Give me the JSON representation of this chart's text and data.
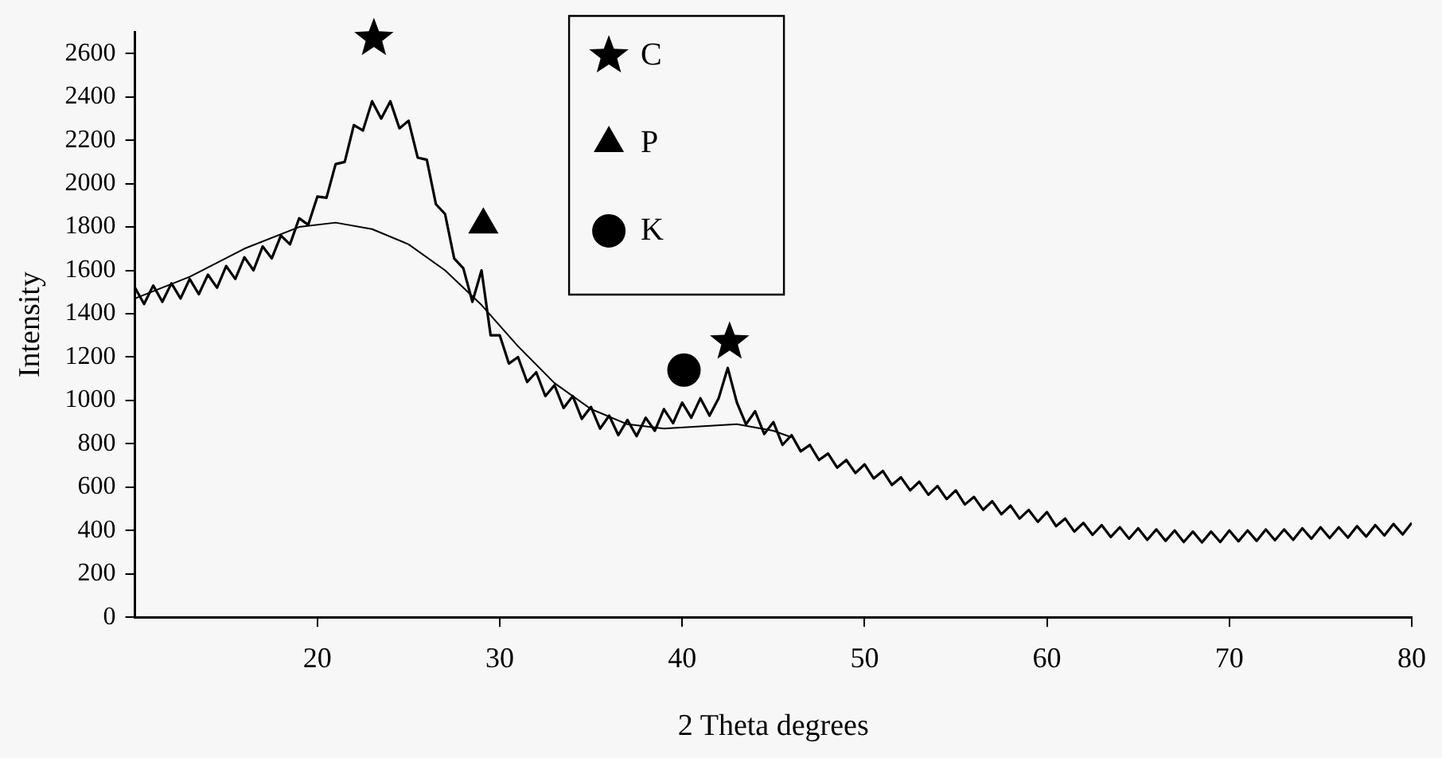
{
  "chart_data": {
    "type": "line",
    "xlabel": "2 Theta degrees",
    "ylabel": "Intensity",
    "xlim": [
      10,
      80
    ],
    "xticks": [
      20,
      30,
      40,
      50,
      60,
      70,
      80
    ],
    "ylim": [
      0,
      2700
    ],
    "yticks": [
      0,
      200,
      400,
      600,
      800,
      1000,
      1200,
      1400,
      1600,
      1800,
      2000,
      2200,
      2400,
      2600
    ],
    "grid": false,
    "legend": "top",
    "series": [
      {
        "color": "#000000",
        "x": [
          10,
          10.5,
          11,
          11.5,
          12,
          12.5,
          13,
          13.5,
          14,
          14.5,
          15,
          15.5,
          16,
          16.5,
          17,
          17.5,
          18,
          18.5,
          19,
          19.5,
          20,
          20.5,
          21,
          21.5,
          22,
          22.5,
          23,
          23.5,
          24,
          24.5,
          25,
          25.5,
          26,
          26.5,
          27,
          27.5,
          28,
          28.5,
          29,
          29.5,
          30,
          30.5,
          31,
          31.5,
          32,
          32.5,
          33,
          33.5,
          34,
          34.5,
          35,
          35.5,
          36,
          36.5,
          37,
          37.5,
          38,
          38.5,
          39,
          39.5,
          40,
          40.5,
          41,
          41.5,
          42,
          42.5,
          43,
          43.5,
          44,
          44.5,
          45,
          45.5,
          46,
          46.5,
          47,
          47.5,
          48,
          48.5,
          49,
          49.5,
          50,
          50.5,
          51,
          51.5,
          52,
          52.5,
          53,
          53.5,
          54,
          54.5,
          55,
          55.5,
          56,
          56.5,
          57,
          57.5,
          58,
          58.5,
          59,
          59.5,
          60,
          60.5,
          61,
          61.5,
          62,
          62.5,
          63,
          63.5,
          64,
          64.5,
          65,
          65.5,
          66,
          66.5,
          67,
          67.5,
          68,
          68.5,
          69,
          69.5,
          70,
          70.5,
          71,
          71.5,
          72,
          72.5,
          73,
          73.5,
          74,
          74.5,
          75,
          75.5,
          76,
          76.5,
          77,
          77.5,
          78,
          78.5,
          79,
          79.5,
          80
        ],
        "values": [
          1520,
          1445,
          1530,
          1455,
          1540,
          1470,
          1560,
          1490,
          1580,
          1520,
          1620,
          1560,
          1660,
          1600,
          1710,
          1655,
          1760,
          1720,
          1840,
          1810,
          1940,
          1935,
          2090,
          2100,
          2270,
          2245,
          2380,
          2300,
          2380,
          2255,
          2290,
          2120,
          2110,
          1905,
          1860,
          1655,
          1610,
          1455,
          1600,
          1300,
          1300,
          1170,
          1200,
          1085,
          1130,
          1020,
          1070,
          965,
          1020,
          915,
          970,
          870,
          930,
          840,
          910,
          835,
          920,
          860,
          960,
          895,
          990,
          920,
          1010,
          930,
          1010,
          1150,
          990,
          890,
          950,
          845,
          900,
          795,
          840,
          765,
          795,
          725,
          755,
          690,
          725,
          665,
          705,
          640,
          675,
          610,
          645,
          585,
          625,
          565,
          605,
          545,
          585,
          520,
          555,
          495,
          535,
          475,
          515,
          455,
          495,
          440,
          485,
          420,
          455,
          395,
          435,
          380,
          425,
          370,
          415,
          362,
          410,
          357,
          405,
          352,
          400,
          347,
          395,
          345,
          395,
          347,
          400,
          350,
          400,
          352,
          405,
          355,
          405,
          357,
          410,
          362,
          415,
          365,
          415,
          367,
          420,
          372,
          425,
          377,
          430,
          382,
          435
        ]
      },
      {
        "type": "line",
        "color": "#000000",
        "x": [
          10,
          13,
          16,
          19,
          21,
          23,
          25,
          27,
          29,
          31,
          33,
          35,
          37,
          39,
          41,
          43,
          45,
          46
        ],
        "values": [
          1470,
          1570,
          1700,
          1800,
          1820,
          1790,
          1720,
          1600,
          1440,
          1250,
          1080,
          960,
          890,
          870,
          880,
          890,
          860,
          830
        ]
      },
      {
        "type": "scatter",
        "name": "C",
        "marker": "star",
        "color": "#000000",
        "x": [
          23.1,
          42.6
        ],
        "values": [
          2670,
          1270
        ]
      },
      {
        "type": "scatter",
        "name": "P",
        "marker": "triangle",
        "color": "#000000",
        "x": [
          29.1
        ],
        "values": [
          1810
        ]
      },
      {
        "type": "scatter",
        "name": "K",
        "marker": "circle",
        "color": "#000000",
        "x": [
          40.1
        ],
        "values": [
          1140
        ]
      }
    ]
  }
}
